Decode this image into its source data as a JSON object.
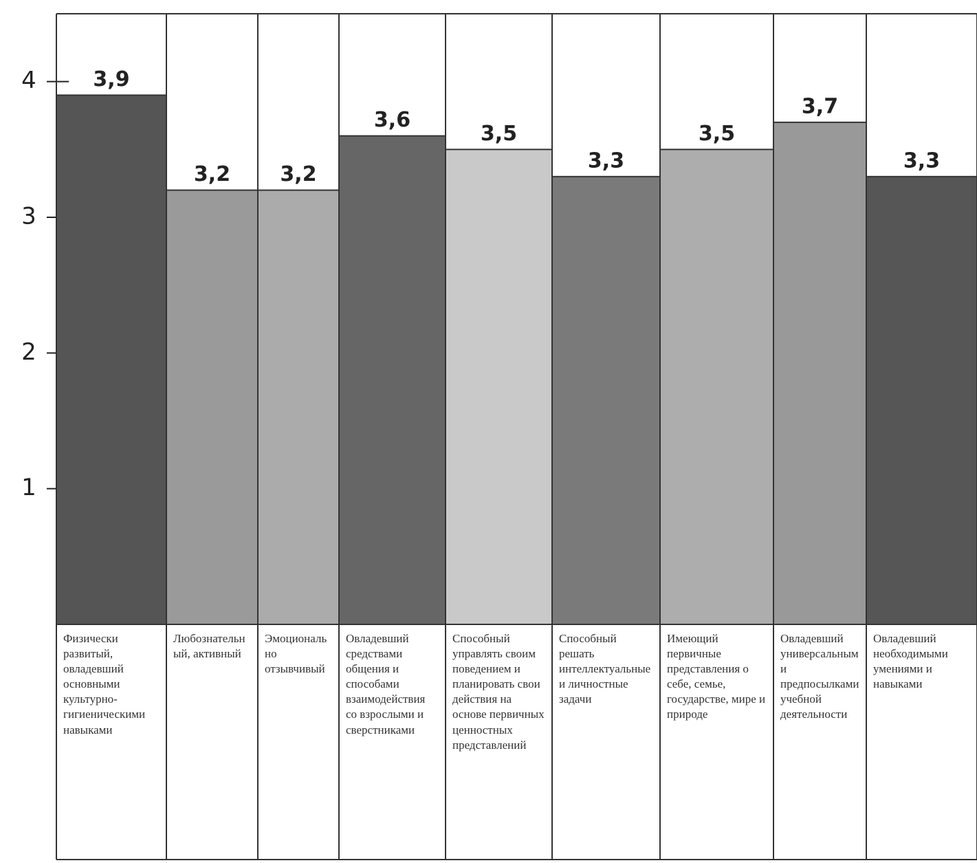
{
  "chart_data": {
    "type": "bar",
    "categories": [
      "Физически развитый, овладевший основными культурно-гигиеническими навыками",
      "Любознательный, активный",
      "Эмоционально отзывчивый",
      "Овладевший средствами общения и способами взаимодействия со взрослыми и сверстниками",
      "Способный управлять своим поведением и планировать свои действия на основе первичных ценностных представлений",
      "Способный решать интеллектуальные и личностные задачи",
      "Имеющий первичные представления о себе, семье, государстве, мире и природе",
      "Овладевший универсальными предпосылками учебной деятельности",
      "Овладевший необходимыми умениями и навыками"
    ],
    "values": [
      3.9,
      3.2,
      3.2,
      3.6,
      3.5,
      3.3,
      3.5,
      3.7,
      3.3
    ],
    "value_labels": [
      "3,9",
      "3,2",
      "3,2",
      "3,6",
      "3,5",
      "3,3",
      "3,5",
      "3,7",
      "3,3"
    ],
    "colors": [
      "#555555",
      "#9a9a9a",
      "#ababab",
      "#666666",
      "#c9c9c9",
      "#7a7a7a",
      "#adadad",
      "#999999",
      "#565656"
    ],
    "ylim": [
      0,
      4.5
    ],
    "yticks": [
      1,
      2,
      3,
      4
    ]
  }
}
